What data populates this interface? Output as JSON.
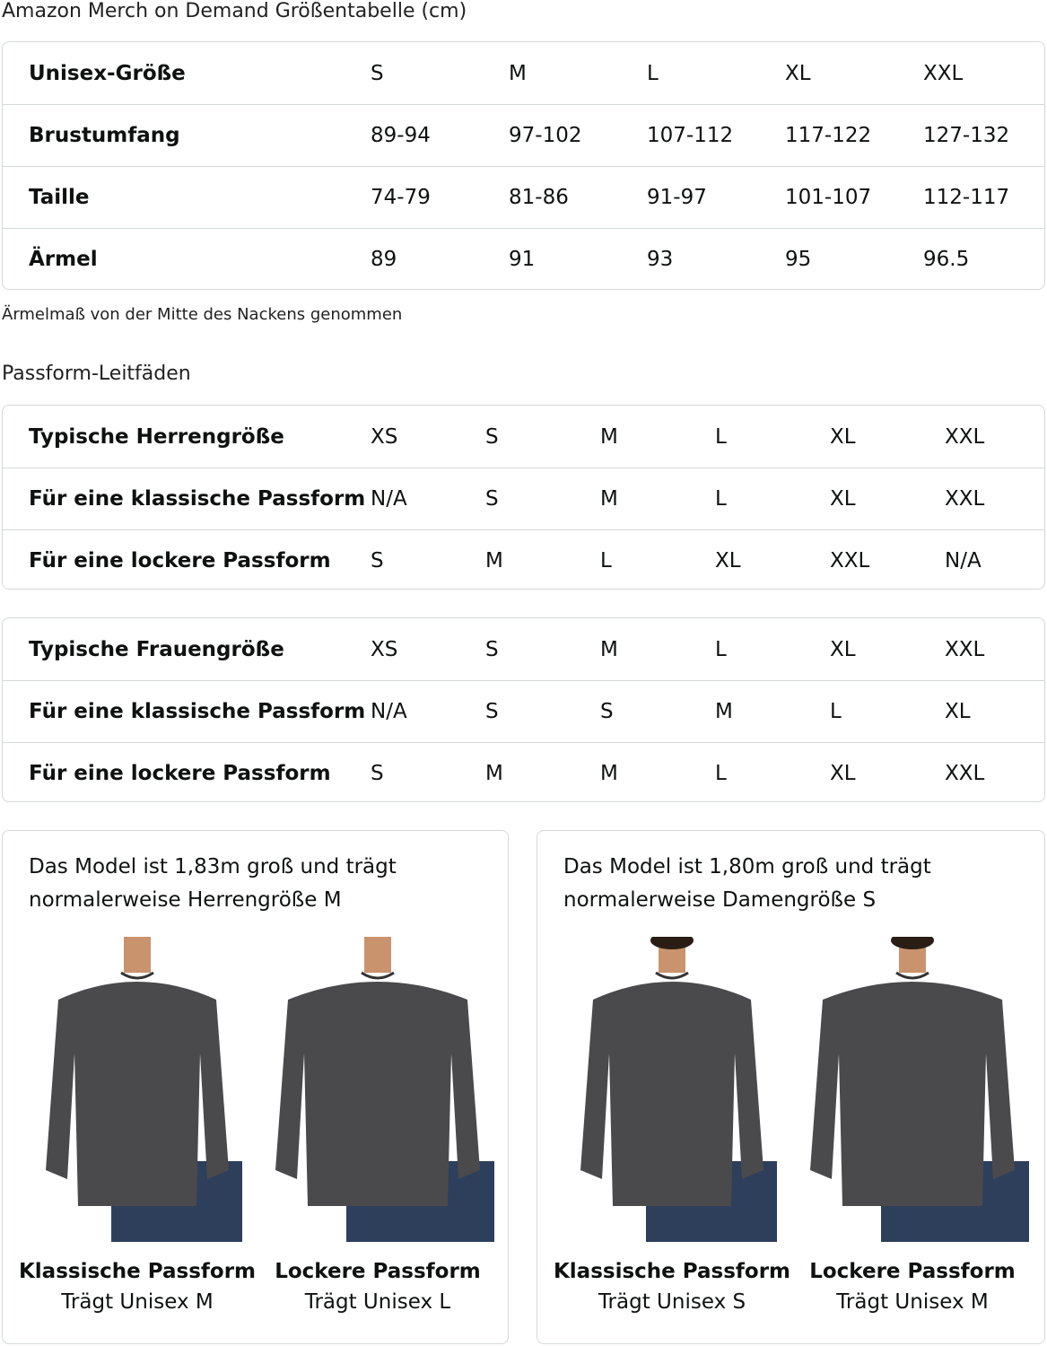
{
  "title": "Amazon Merch on Demand Größentabelle (cm)",
  "unisex_table": [
    [
      "Unisex-Größe",
      "S",
      "M",
      "L",
      "XL",
      "XXL"
    ],
    [
      "Brustumfang",
      "89-94",
      "97-102",
      "107-112",
      "117-122",
      "127-132"
    ],
    [
      "Taille",
      "74-79",
      "81-86",
      "91-97",
      "101-107",
      "112-117"
    ],
    [
      "Ärmel",
      "89",
      "91",
      "93",
      "95",
      "96.5"
    ]
  ],
  "note": "Ärmelmaß von der Mitte des Nackens genommen",
  "fit_title": "Passform-Leitfäden",
  "men_table": [
    [
      "Typische Herrengröße",
      "XS",
      "S",
      "M",
      "L",
      "XL",
      "XXL"
    ],
    [
      "Für eine klassische Passform",
      "N/A",
      "S",
      "M",
      "L",
      "XL",
      "XXL"
    ],
    [
      "Für eine lockere Passform",
      "S",
      "M",
      "L",
      "XL",
      "XXL",
      "N/A"
    ]
  ],
  "women_table": [
    [
      "Typische Frauengröße",
      "XS",
      "S",
      "M",
      "L",
      "XL",
      "XXL"
    ],
    [
      "Für eine klassische Passform",
      "N/A",
      "S",
      "S",
      "M",
      "L",
      "XL"
    ],
    [
      "Für eine lockere Passform",
      "S",
      "M",
      "M",
      "L",
      "XL",
      "XXL"
    ]
  ],
  "cards": [
    {
      "text": "Das Model ist 1,83m groß und trägt normalerweise Herrengröße M",
      "figures": [
        {
          "title": "Klassische Passform",
          "sub": "Trägt Unisex M"
        },
        {
          "title": "Lockere Passform",
          "sub": "Trägt Unisex L"
        }
      ]
    },
    {
      "text": "Das Model ist 1,80m groß und trägt normalerweise Damengröße S",
      "figures": [
        {
          "title": "Klassische Passform",
          "sub": "Trägt Unisex S"
        },
        {
          "title": "Lockere Passform",
          "sub": "Trägt Unisex M"
        }
      ]
    }
  ],
  "colors": {
    "border": "#d5d9d9",
    "sweatshirt": "#4a4a4c",
    "jeans": "#2e3f5c"
  }
}
